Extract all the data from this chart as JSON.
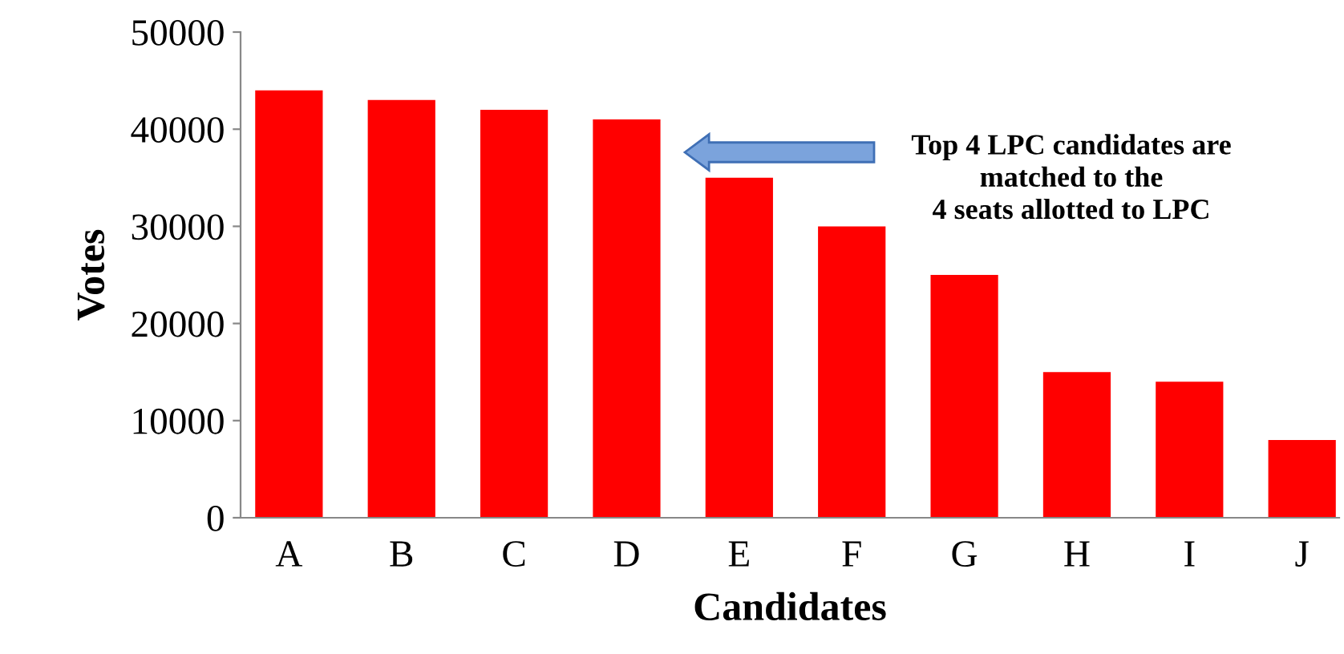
{
  "chart_data": {
    "type": "bar",
    "xlabel": "Candidates",
    "ylabel": "Votes",
    "categories": [
      "A",
      "B",
      "C",
      "D",
      "E",
      "F",
      "G",
      "H",
      "I",
      "J"
    ],
    "values": [
      44000,
      43000,
      42000,
      41000,
      35000,
      30000,
      25000,
      15000,
      14000,
      8000
    ],
    "color": "#ff0000",
    "ylim": [
      0,
      50000
    ],
    "yticks": [
      0,
      10000,
      20000,
      30000,
      40000,
      50000
    ],
    "grid": false,
    "legend": false,
    "annotations": [
      "Top 4 LPC candidates are\nmatched to the\n4 seats allotted to LPC"
    ]
  }
}
